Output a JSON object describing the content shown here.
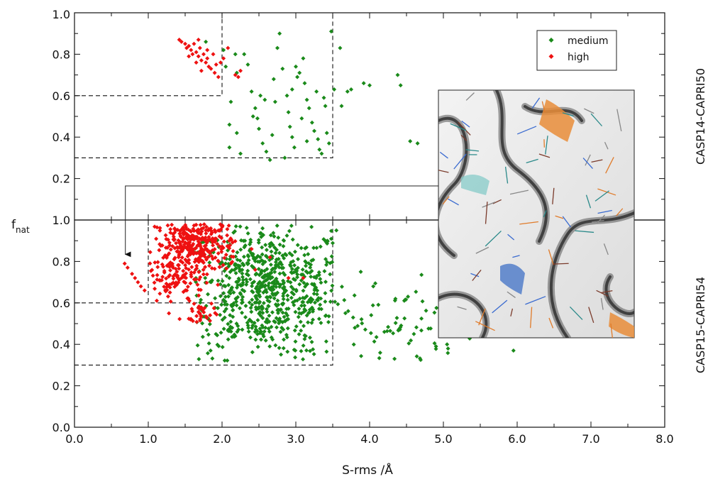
{
  "chart_data": {
    "type": "scatter",
    "xlabel": "S-rms /Å",
    "ylabel": "f",
    "ylabel_sub": "nat",
    "xlim": [
      0.0,
      8.0
    ],
    "x_ticks": [
      "0.0",
      "1.0",
      "2.0",
      "3.0",
      "4.0",
      "5.0",
      "6.0",
      "7.0",
      "8.0"
    ],
    "legend": {
      "position": "top-right",
      "entries": [
        "medium",
        "high"
      ]
    },
    "colors": {
      "medium": "#1a8a1a",
      "high": "#ee1111"
    },
    "inset": {
      "description_icon": "protein-structure-overlay",
      "arrow_target": [
        0.68,
        0.8
      ]
    },
    "panels": [
      {
        "label": "CASP14-CAPRI50",
        "ylim": [
          0.0,
          1.0
        ],
        "y_ticks": [
          "",
          "0.2",
          "0.4",
          "0.6",
          "0.8",
          "1.0"
        ],
        "threshold_boxes": [
          {
            "x": [
              0.0,
              2.0
            ],
            "y": [
              0.6,
              1.0
            ]
          },
          {
            "x": [
              0.0,
              3.5
            ],
            "y": [
              0.3,
              1.0
            ]
          }
        ],
        "series": [
          {
            "name": "medium",
            "points": [
              [
                1.78,
                0.86
              ],
              [
                2.02,
                0.82
              ],
              [
                2.05,
                0.74
              ],
              [
                2.12,
                0.57
              ],
              [
                2.1,
                0.46
              ],
              [
                2.18,
                0.8
              ],
              [
                2.2,
                0.71
              ],
              [
                2.3,
                0.8
              ],
              [
                2.35,
                0.75
              ],
              [
                2.4,
                0.62
              ],
              [
                2.45,
                0.54
              ],
              [
                2.48,
                0.49
              ],
              [
                2.5,
                0.44
              ],
              [
                2.55,
                0.37
              ],
              [
                2.6,
                0.33
              ],
              [
                2.65,
                0.29
              ],
              [
                2.7,
                0.68
              ],
              [
                2.75,
                0.83
              ],
              [
                2.78,
                0.9
              ],
              [
                2.82,
                0.73
              ],
              [
                2.88,
                0.6
              ],
              [
                2.9,
                0.52
              ],
              [
                2.92,
                0.45
              ],
              [
                2.95,
                0.4
              ],
              [
                2.98,
                0.35
              ],
              [
                3.0,
                0.74
              ],
              [
                3.05,
                0.71
              ],
              [
                3.1,
                0.78
              ],
              [
                3.12,
                0.66
              ],
              [
                3.15,
                0.58
              ],
              [
                3.18,
                0.54
              ],
              [
                3.22,
                0.47
              ],
              [
                3.25,
                0.43
              ],
              [
                3.28,
                0.62
              ],
              [
                3.3,
                0.39
              ],
              [
                3.32,
                0.34
              ],
              [
                3.35,
                0.32
              ],
              [
                3.38,
                0.59
              ],
              [
                3.4,
                0.55
              ],
              [
                3.42,
                0.42
              ],
              [
                3.45,
                0.37
              ],
              [
                3.48,
                0.91
              ],
              [
                3.52,
                0.63
              ],
              [
                3.6,
                0.83
              ],
              [
                3.62,
                0.55
              ],
              [
                3.7,
                0.62
              ],
              [
                3.75,
                0.63
              ],
              [
                3.92,
                0.66
              ],
              [
                4.0,
                0.65
              ],
              [
                4.38,
                0.7
              ],
              [
                4.42,
                0.65
              ],
              [
                4.55,
                0.38
              ],
              [
                4.65,
                0.37
              ],
              [
                2.1,
                0.35
              ],
              [
                2.25,
                0.32
              ],
              [
                2.58,
                0.58
              ],
              [
                2.85,
                0.3
              ],
              [
                3.08,
                0.49
              ],
              [
                2.68,
                0.41
              ],
              [
                2.95,
                0.63
              ],
              [
                3.02,
                0.69
              ],
              [
                2.72,
                0.57
              ],
              [
                3.15,
                0.38
              ],
              [
                2.42,
                0.5
              ],
              [
                2.2,
                0.42
              ],
              [
                2.52,
                0.6
              ]
            ]
          },
          {
            "name": "high",
            "points": [
              [
                1.42,
                0.87
              ],
              [
                1.45,
                0.86
              ],
              [
                1.5,
                0.85
              ],
              [
                1.52,
                0.83
              ],
              [
                1.55,
                0.84
              ],
              [
                1.58,
                0.82
              ],
              [
                1.6,
                0.8
              ],
              [
                1.62,
                0.85
              ],
              [
                1.65,
                0.81
              ],
              [
                1.68,
                0.79
              ],
              [
                1.7,
                0.83
              ],
              [
                1.72,
                0.77
              ],
              [
                1.75,
                0.8
              ],
              [
                1.78,
                0.76
              ],
              [
                1.8,
                0.78
              ],
              [
                1.82,
                0.74
              ],
              [
                1.85,
                0.73
              ],
              [
                1.88,
                0.8
              ],
              [
                1.9,
                0.71
              ],
              [
                1.92,
                0.75
              ],
              [
                1.95,
                0.69
              ],
              [
                1.68,
                0.87
              ],
              [
                1.72,
                0.72
              ],
              [
                1.8,
                0.82
              ],
              [
                1.55,
                0.79
              ],
              [
                2.02,
                0.78
              ],
              [
                2.08,
                0.83
              ],
              [
                2.22,
                0.69
              ],
              [
                2.25,
                0.72
              ],
              [
                2.18,
                0.7
              ],
              [
                1.98,
                0.76
              ],
              [
                1.65,
                0.76
              ]
            ]
          }
        ]
      },
      {
        "label": "CASP15-CAPRI54",
        "ylim": [
          0.0,
          1.0
        ],
        "y_ticks": [
          "0.0",
          "0.2",
          "0.4",
          "0.6",
          "0.8",
          "1.0"
        ],
        "threshold_boxes": [
          {
            "x": [
              1.0,
              2.0
            ],
            "y": [
              0.6,
              1.0
            ]
          },
          {
            "x": [
              0.0,
              1.0
            ],
            "y": [
              0.6,
              0.6
            ]
          },
          {
            "x": [
              0.0,
              3.5
            ],
            "y": [
              0.3,
              1.0
            ]
          }
        ],
        "scatter_clusters": [
          {
            "name": "medium",
            "count": 700,
            "cx": [
              1.6,
              3.5
            ],
            "cy": [
              0.32,
              0.98
            ],
            "center": [
              2.6,
              0.66
            ],
            "spread": [
              0.55,
              0.16
            ]
          },
          {
            "name": "medium",
            "count": 70,
            "cx": [
              3.5,
              6.0
            ],
            "cy": [
              0.3,
              0.78
            ],
            "center": [
              4.2,
              0.5
            ],
            "spread": [
              0.6,
              0.11
            ]
          },
          {
            "name": "high",
            "count": 320,
            "cx": [
              1.0,
              2.2
            ],
            "cy": [
              0.6,
              0.98
            ],
            "center": [
              1.65,
              0.88
            ],
            "spread": [
              0.28,
              0.07
            ]
          },
          {
            "name": "high",
            "count": 90,
            "cx": [
              1.0,
              2.2
            ],
            "cy": [
              0.5,
              0.82
            ],
            "center": [
              1.35,
              0.72
            ],
            "spread": [
              0.2,
              0.08
            ]
          },
          {
            "name": "high",
            "count": 30,
            "cx": [
              1.5,
              2.0
            ],
            "cy": [
              0.5,
              0.6
            ],
            "center": [
              1.7,
              0.55
            ],
            "spread": [
              0.1,
              0.03
            ]
          }
        ],
        "series": [
          {
            "name": "high",
            "points": [
              [
                0.68,
                0.79
              ],
              [
                0.72,
                0.77
              ],
              [
                0.78,
                0.74
              ],
              [
                0.82,
                0.72
              ],
              [
                0.86,
                0.7
              ],
              [
                0.9,
                0.68
              ],
              [
                0.95,
                0.66
              ],
              [
                2.4,
                0.86
              ],
              [
                2.65,
                0.82
              ],
              [
                2.9,
                0.72
              ],
              [
                2.45,
                0.76
              ],
              [
                3.1,
                0.72
              ]
            ]
          },
          {
            "name": "medium",
            "points": [
              [
                3.55,
                0.95
              ],
              [
                3.88,
                0.75
              ],
              [
                4.05,
                0.68
              ],
              [
                4.35,
                0.62
              ],
              [
                4.52,
                0.63
              ],
              [
                4.6,
                0.45
              ],
              [
                4.9,
                0.39
              ],
              [
                5.05,
                0.4
              ],
              [
                5.95,
                0.37
              ],
              [
                3.8,
                0.48
              ],
              [
                4.2,
                0.46
              ]
            ]
          }
        ]
      }
    ]
  }
}
